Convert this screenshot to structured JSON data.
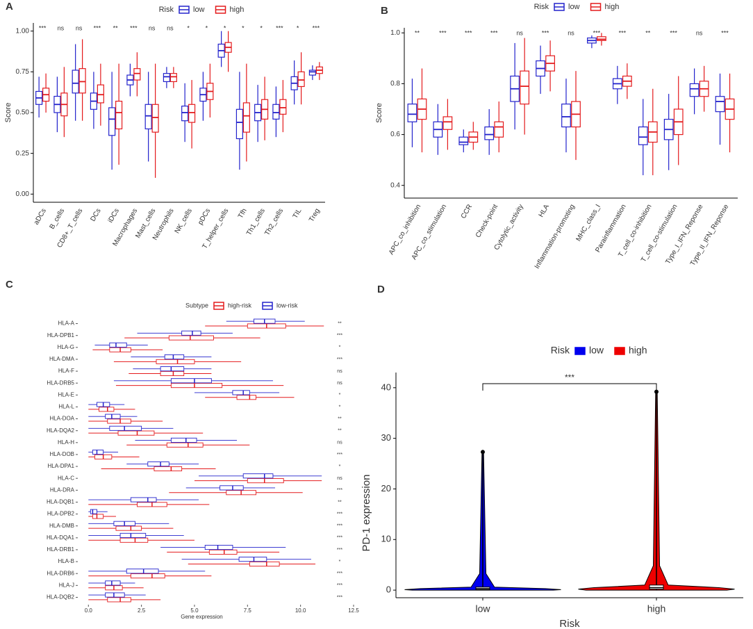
{
  "chart_data": [
    {
      "type": "box",
      "label": "A",
      "orientation": "vertical",
      "ylabel": "Score",
      "legend_title": "Risk",
      "categories": [
        "aDCs",
        "B_cells",
        "CD8+_T_cells",
        "DCs",
        "iDCs",
        "Macrophages",
        "Mast_cells",
        "Neutrophils",
        "NK_cells",
        "pDCs",
        "T_helper_cells",
        "Tfh",
        "Th1_cells",
        "Th2_cells",
        "TIL",
        "Treg"
      ],
      "annotations": [
        "***",
        "ns",
        "ns",
        "***",
        "**",
        "***",
        "ns",
        "ns",
        "*",
        "*",
        "*",
        "*",
        "*",
        "***",
        "*",
        "***"
      ],
      "ylim": [
        -0.05,
        1.05
      ],
      "yticks": [
        {
          "value": 0,
          "label": "0.00"
        },
        {
          "value": 0.25,
          "label": "0.25"
        },
        {
          "value": 0.5,
          "label": "0.50"
        },
        {
          "value": 0.75,
          "label": "0.75"
        },
        {
          "value": 1,
          "label": "1.00"
        }
      ],
      "series": [
        {
          "name": "low",
          "color": "#2222cc",
          "values": [
            [
              0.47,
              0.55,
              0.59,
              0.63,
              0.72
            ],
            [
              0.38,
              0.5,
              0.55,
              0.6,
              0.72
            ],
            [
              0.45,
              0.62,
              0.68,
              0.76,
              0.92
            ],
            [
              0.4,
              0.52,
              0.57,
              0.62,
              0.75
            ],
            [
              0.15,
              0.36,
              0.46,
              0.53,
              0.75
            ],
            [
              0.6,
              0.67,
              0.7,
              0.73,
              0.8
            ],
            [
              0.2,
              0.4,
              0.48,
              0.55,
              0.75
            ],
            [
              0.65,
              0.69,
              0.72,
              0.74,
              0.78
            ],
            [
              0.32,
              0.45,
              0.5,
              0.54,
              0.68
            ],
            [
              0.45,
              0.57,
              0.61,
              0.65,
              0.75
            ],
            [
              0.78,
              0.84,
              0.88,
              0.92,
              1.0
            ],
            [
              0.15,
              0.34,
              0.44,
              0.52,
              0.75
            ],
            [
              0.32,
              0.45,
              0.5,
              0.55,
              0.67
            ],
            [
              0.35,
              0.46,
              0.5,
              0.55,
              0.66
            ],
            [
              0.55,
              0.64,
              0.68,
              0.72,
              0.82
            ],
            [
              0.7,
              0.73,
              0.75,
              0.76,
              0.79
            ]
          ]
        },
        {
          "name": "high",
          "color": "#e41a1c",
          "values": [
            [
              0.5,
              0.57,
              0.61,
              0.65,
              0.74
            ],
            [
              0.35,
              0.48,
              0.55,
              0.62,
              0.78
            ],
            [
              0.45,
              0.62,
              0.69,
              0.77,
              0.95
            ],
            [
              0.42,
              0.56,
              0.61,
              0.67,
              0.8
            ],
            [
              0.18,
              0.4,
              0.5,
              0.57,
              0.8
            ],
            [
              0.6,
              0.7,
              0.74,
              0.77,
              0.87
            ],
            [
              0.1,
              0.38,
              0.47,
              0.55,
              0.8
            ],
            [
              0.65,
              0.69,
              0.72,
              0.74,
              0.78
            ],
            [
              0.28,
              0.44,
              0.5,
              0.55,
              0.7
            ],
            [
              0.47,
              0.58,
              0.63,
              0.68,
              0.8
            ],
            [
              0.75,
              0.87,
              0.9,
              0.93,
              1.0
            ],
            [
              0.2,
              0.38,
              0.48,
              0.56,
              0.8
            ],
            [
              0.33,
              0.46,
              0.52,
              0.58,
              0.72
            ],
            [
              0.38,
              0.49,
              0.53,
              0.58,
              0.7
            ],
            [
              0.55,
              0.66,
              0.7,
              0.75,
              0.87
            ],
            [
              0.7,
              0.74,
              0.76,
              0.78,
              0.81
            ]
          ]
        }
      ]
    },
    {
      "type": "box",
      "label": "B",
      "orientation": "vertical",
      "ylabel": "Score",
      "legend_title": "Risk",
      "categories": [
        "APC_co_inhibition",
        "APC_co_stimulation",
        "CCR",
        "Check-point",
        "Cytolytic_activity",
        "HLA",
        "Inflammation-promoting",
        "MHC_class_I",
        "Parainflammation",
        "T_cell_co-inhibition",
        "T_cell_co-stimulation",
        "Type_I_IFN_Reponse",
        "Type_II_IFN_Reponse"
      ],
      "annotations": [
        "**",
        "***",
        "***",
        "***",
        "ns",
        "***",
        "ns",
        "***",
        "***",
        "**",
        "***",
        "ns",
        "***"
      ],
      "ylim": [
        0.35,
        1.02
      ],
      "yticks": [
        0.4,
        0.6,
        0.8,
        {
          "value": 1,
          "label": "1.0"
        }
      ],
      "series": [
        {
          "name": "low",
          "color": "#2222cc",
          "values": [
            [
              0.55,
              0.65,
              0.68,
              0.72,
              0.82
            ],
            [
              0.52,
              0.59,
              0.62,
              0.65,
              0.72
            ],
            [
              0.53,
              0.56,
              0.57,
              0.59,
              0.62
            ],
            [
              0.52,
              0.58,
              0.6,
              0.63,
              0.7
            ],
            [
              0.62,
              0.73,
              0.78,
              0.83,
              0.96
            ],
            [
              0.76,
              0.83,
              0.86,
              0.89,
              0.95
            ],
            [
              0.53,
              0.63,
              0.67,
              0.72,
              0.82
            ],
            [
              0.94,
              0.96,
              0.97,
              0.98,
              0.99
            ],
            [
              0.72,
              0.78,
              0.8,
              0.82,
              0.87
            ],
            [
              0.44,
              0.56,
              0.59,
              0.63,
              0.74
            ],
            [
              0.46,
              0.58,
              0.62,
              0.66,
              0.76
            ],
            [
              0.68,
              0.75,
              0.78,
              0.8,
              0.86
            ],
            [
              0.56,
              0.69,
              0.73,
              0.75,
              0.84
            ]
          ]
        },
        {
          "name": "high",
          "color": "#e41a1c",
          "values": [
            [
              0.53,
              0.66,
              0.7,
              0.74,
              0.86
            ],
            [
              0.54,
              0.62,
              0.65,
              0.67,
              0.74
            ],
            [
              0.54,
              0.57,
              0.59,
              0.61,
              0.65
            ],
            [
              0.53,
              0.59,
              0.63,
              0.65,
              0.73
            ],
            [
              0.6,
              0.72,
              0.79,
              0.85,
              0.98
            ],
            [
              0.77,
              0.85,
              0.88,
              0.91,
              0.97
            ],
            [
              0.5,
              0.63,
              0.68,
              0.73,
              0.85
            ],
            [
              0.95,
              0.97,
              0.975,
              0.985,
              1.0
            ],
            [
              0.74,
              0.79,
              0.81,
              0.83,
              0.88
            ],
            [
              0.44,
              0.57,
              0.61,
              0.65,
              0.78
            ],
            [
              0.48,
              0.6,
              0.65,
              0.7,
              0.83
            ],
            [
              0.69,
              0.75,
              0.78,
              0.81,
              0.87
            ],
            [
              0.53,
              0.66,
              0.7,
              0.74,
              0.84
            ]
          ]
        }
      ]
    },
    {
      "type": "box",
      "label": "C",
      "orientation": "horizontal",
      "xlabel": "Gene expression",
      "legend_title": "Subtype",
      "categories": [
        "HLA-A",
        "HLA-DPB1",
        "HLA-G",
        "HLA-DMA",
        "HLA-F",
        "HLA-DRB5",
        "HLA-E",
        "HLA-L",
        "HLA-DOA",
        "HLA-DQA2",
        "HLA-H",
        "HLA-DOB",
        "HLA-DPA1",
        "HLA-C",
        "HLA-DRA",
        "HLA-DQB1",
        "HLA-DPB2",
        "HLA-DMB",
        "HLA-DQA1",
        "HLA-DRB1",
        "HLA-B",
        "HLA-DRB6",
        "HLA-J",
        "HLA-DQB2"
      ],
      "annotations": [
        "**",
        "***",
        "*",
        "***",
        "ns",
        "ns",
        "*",
        "*",
        "**",
        "**",
        "ns",
        "***",
        "*",
        "ns",
        "***",
        "**",
        "***",
        "***",
        "***",
        "***",
        "*",
        "***",
        "***",
        "***"
      ],
      "xlim": [
        -0.5,
        12.5
      ],
      "xticks": [
        {
          "value": 0,
          "label": "0.0"
        },
        2.5,
        {
          "value": 5,
          "label": "5.0"
        },
        7.5,
        {
          "value": 10,
          "label": "10.0"
        },
        12.5
      ],
      "series": [
        {
          "name": "high-risk",
          "color": "#e41a1c",
          "values": [
            [
              5.5,
              7.5,
              8.4,
              9.3,
              11.1
            ],
            [
              1.7,
              3.8,
              4.8,
              5.9,
              8.1
            ],
            [
              0.2,
              1.0,
              1.5,
              2.0,
              3.5
            ],
            [
              1.2,
              3.2,
              4.2,
              5.0,
              7.2
            ],
            [
              1.9,
              3.4,
              4.0,
              4.5,
              5.8
            ],
            [
              1.3,
              3.9,
              5.0,
              6.3,
              9.2
            ],
            [
              5.5,
              7.0,
              7.6,
              7.9,
              9.7
            ],
            [
              0,
              0.5,
              0.9,
              1.2,
              2.2
            ],
            [
              0,
              0.9,
              1.5,
              2.0,
              3.5
            ],
            [
              0,
              1.4,
              2.3,
              3.1,
              5.4
            ],
            [
              1.8,
              3.7,
              4.7,
              5.4,
              7.6
            ],
            [
              0,
              0.3,
              0.7,
              1.1,
              2.4
            ],
            [
              0.6,
              3.1,
              3.9,
              4.4,
              6.0
            ],
            [
              5.0,
              7.5,
              8.3,
              9.2,
              11.0
            ],
            [
              3.8,
              6.5,
              7.2,
              7.9,
              10.1
            ],
            [
              0,
              2.3,
              3.0,
              3.7,
              5.7
            ],
            [
              0,
              0.2,
              0.4,
              0.7,
              1.3
            ],
            [
              0,
              1.3,
              2.0,
              2.5,
              4.0
            ],
            [
              0,
              1.5,
              2.2,
              2.8,
              5.0
            ],
            [
              3.7,
              5.7,
              6.4,
              7.0,
              9.0
            ],
            [
              4.7,
              7.6,
              8.4,
              9.0,
              10.7
            ],
            [
              0,
              2.0,
              3.0,
              3.6,
              5.8
            ],
            [
              0,
              0.8,
              1.2,
              1.6,
              2.6
            ],
            [
              0,
              0.9,
              1.5,
              2.0,
              3.4
            ]
          ]
        },
        {
          "name": "low-risk",
          "color": "#2222cc",
          "values": [
            [
              6.5,
              7.8,
              8.3,
              8.8,
              10.2
            ],
            [
              2.3,
              4.4,
              4.9,
              5.3,
              6.8
            ],
            [
              0.3,
              1.0,
              1.3,
              1.8,
              2.8
            ],
            [
              2.0,
              3.6,
              4.0,
              4.5,
              5.8
            ],
            [
              2.1,
              3.4,
              3.9,
              4.5,
              5.8
            ],
            [
              1.2,
              3.9,
              5.0,
              5.8,
              8.7
            ],
            [
              5.0,
              6.8,
              7.3,
              7.6,
              9.0
            ],
            [
              0,
              0.4,
              0.7,
              1.0,
              1.7
            ],
            [
              0,
              0.8,
              1.1,
              1.5,
              2.3
            ],
            [
              0,
              1.0,
              1.7,
              2.5,
              4.0
            ],
            [
              2.2,
              3.9,
              4.6,
              5.1,
              7.0
            ],
            [
              0,
              0.2,
              0.4,
              0.7,
              1.4
            ],
            [
              1.8,
              2.8,
              3.4,
              3.8,
              5.2
            ],
            [
              5.2,
              7.3,
              8.3,
              8.7,
              11.0
            ],
            [
              4.6,
              6.2,
              6.8,
              7.3,
              8.8
            ],
            [
              0,
              2.0,
              2.8,
              3.2,
              5.2
            ],
            [
              0,
              0.1,
              0.2,
              0.4,
              0.9
            ],
            [
              0,
              1.2,
              1.7,
              2.2,
              3.8
            ],
            [
              0,
              1.5,
              2.0,
              2.7,
              4.5
            ],
            [
              3.4,
              5.5,
              6.1,
              6.8,
              9.3
            ],
            [
              4.4,
              7.1,
              7.8,
              8.4,
              10.5
            ],
            [
              0,
              1.8,
              2.6,
              3.3,
              5.5
            ],
            [
              0,
              0.8,
              1.1,
              1.5,
              2.2
            ],
            [
              0,
              0.8,
              1.2,
              1.7,
              2.7
            ]
          ]
        }
      ]
    },
    {
      "type": "violin",
      "label": "D",
      "xlabel": "Risk",
      "ylabel": "PD-1 expression",
      "legend_title": "Risk",
      "categories": [
        "low",
        "high"
      ],
      "annotation": "***",
      "ylim": [
        -1.5,
        43
      ],
      "yticks": [
        0,
        10,
        20,
        30,
        40
      ],
      "series": [
        {
          "name": "low",
          "color": "#0000ee",
          "values": [
            0,
            0.1,
            0.3,
            0.6,
            27.3
          ]
        },
        {
          "name": "high",
          "color": "#ee0000",
          "values": [
            0,
            0.2,
            0.5,
            1.0,
            39.2
          ]
        }
      ]
    }
  ]
}
